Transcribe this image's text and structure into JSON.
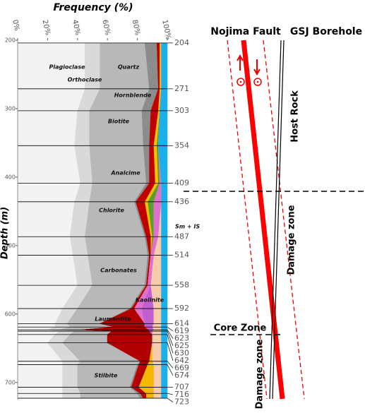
{
  "chart_data": {
    "type": "area",
    "title": "Frequency (%)",
    "x_label": "Depth (m)",
    "orientation": "vertical",
    "stacked": true,
    "x": [
      204,
      271,
      303,
      354,
      409,
      436,
      487,
      514,
      558,
      592,
      614,
      619,
      623,
      625,
      630,
      642,
      669,
      674,
      707,
      716,
      723
    ],
    "xlim": [
      200,
      725
    ],
    "xticks": [
      200,
      300,
      400,
      500,
      600,
      700
    ],
    "ylim": [
      0,
      100
    ],
    "yticks": [
      {
        "value": 0,
        "label": "0%"
      },
      {
        "value": 20,
        "label": "20%"
      },
      {
        "value": 40,
        "label": "40%"
      },
      {
        "value": 60,
        "label": "60%"
      },
      {
        "value": 80,
        "label": "80%"
      },
      {
        "value": 100,
        "label": "100%"
      }
    ],
    "series": [
      {
        "name": "Plagioclase",
        "color": "#f2f2f2",
        "values": [
          45,
          45,
          40,
          38,
          42,
          38,
          35,
          37,
          40,
          30,
          25,
          25,
          20,
          28,
          25,
          20,
          30,
          30,
          30,
          30,
          30
        ]
      },
      {
        "name": "Orthoclase",
        "color": "#d9d9d9",
        "values": [
          10,
          10,
          8,
          10,
          8,
          10,
          10,
          10,
          10,
          10,
          8,
          10,
          8,
          10,
          10,
          10,
          12,
          10,
          10,
          12,
          12
        ]
      },
      {
        "name": "Quartz",
        "color": "#b8b8b8",
        "values": [
          30,
          33,
          35,
          36,
          36,
          30,
          40,
          40,
          35,
          35,
          22,
          30,
          15,
          25,
          25,
          30,
          40,
          40,
          35,
          38,
          40
        ]
      },
      {
        "name": "Hornblende",
        "color": "#8c8c8c",
        "values": [
          8,
          6,
          6,
          4,
          2,
          1,
          1,
          1,
          1,
          1,
          0,
          0,
          0,
          0,
          0,
          0,
          0,
          1,
          1,
          2,
          2
        ]
      },
      {
        "name": "Biotite",
        "color": "#c00000",
        "values": [
          2,
          1,
          5,
          3,
          4,
          6,
          3,
          1,
          1,
          2,
          0,
          0,
          0,
          0,
          0,
          0,
          1,
          2,
          2,
          4,
          2
        ]
      },
      {
        "name": "Laumontite",
        "color": "#b00000",
        "values": [
          0,
          0,
          0,
          0,
          0,
          0,
          0,
          0,
          0,
          0,
          30,
          20,
          45,
          25,
          30,
          30,
          5,
          4,
          3,
          0,
          0
        ]
      },
      {
        "name": "Analcime",
        "color": "#ffc000",
        "values": [
          1,
          1,
          1,
          2,
          2,
          2,
          1,
          0,
          0,
          0,
          0,
          0,
          0,
          0,
          0,
          0,
          0,
          0,
          0,
          0,
          0
        ]
      },
      {
        "name": "Chlorite",
        "color": "#5a9e32",
        "values": [
          0,
          0,
          0,
          1,
          1,
          4,
          1,
          0,
          0,
          0,
          0,
          0,
          0,
          0,
          0,
          0,
          0,
          0,
          0,
          0,
          0
        ]
      },
      {
        "name": "Stilbite",
        "color": "#f5b800",
        "values": [
          0,
          0,
          0,
          0,
          0,
          0,
          0,
          0,
          0,
          0,
          0,
          0,
          0,
          0,
          0,
          0,
          2,
          4,
          10,
          5,
          5
        ]
      },
      {
        "name": "Sm + IS",
        "color": "#e070d0",
        "values": [
          0,
          0,
          0,
          0,
          1,
          5,
          3,
          2,
          2,
          5,
          0,
          0,
          0,
          0,
          0,
          0,
          0,
          0,
          0,
          0,
          0
        ]
      },
      {
        "name": "Kaolinite",
        "color": "#c060d0",
        "values": [
          0,
          0,
          0,
          0,
          0,
          0,
          0,
          0,
          0,
          8,
          6,
          5,
          3,
          2,
          0,
          0,
          0,
          0,
          0,
          0,
          0
        ]
      },
      {
        "name": "Carbonates",
        "color": "#f8cbad",
        "values": [
          0,
          0,
          0,
          0,
          0,
          0,
          2,
          5,
          7,
          5,
          5,
          6,
          5,
          6,
          6,
          6,
          6,
          5,
          5,
          5,
          5
        ]
      },
      {
        "color": "#1ab0ec",
        "values": [
          4,
          4,
          5,
          6,
          4,
          4,
          4,
          4,
          4,
          4,
          4,
          4,
          4,
          4,
          4,
          4,
          4,
          4,
          4,
          4,
          4
        ]
      }
    ]
  },
  "schematic": {
    "fault": "Nojima Fault",
    "borehole": "GSJ Borehole",
    "host_rock": "Host Rock",
    "damage_zone_upper": "Damage zone",
    "core_zone": "Core Zone",
    "damage_zone_lower": "Damage zone"
  }
}
